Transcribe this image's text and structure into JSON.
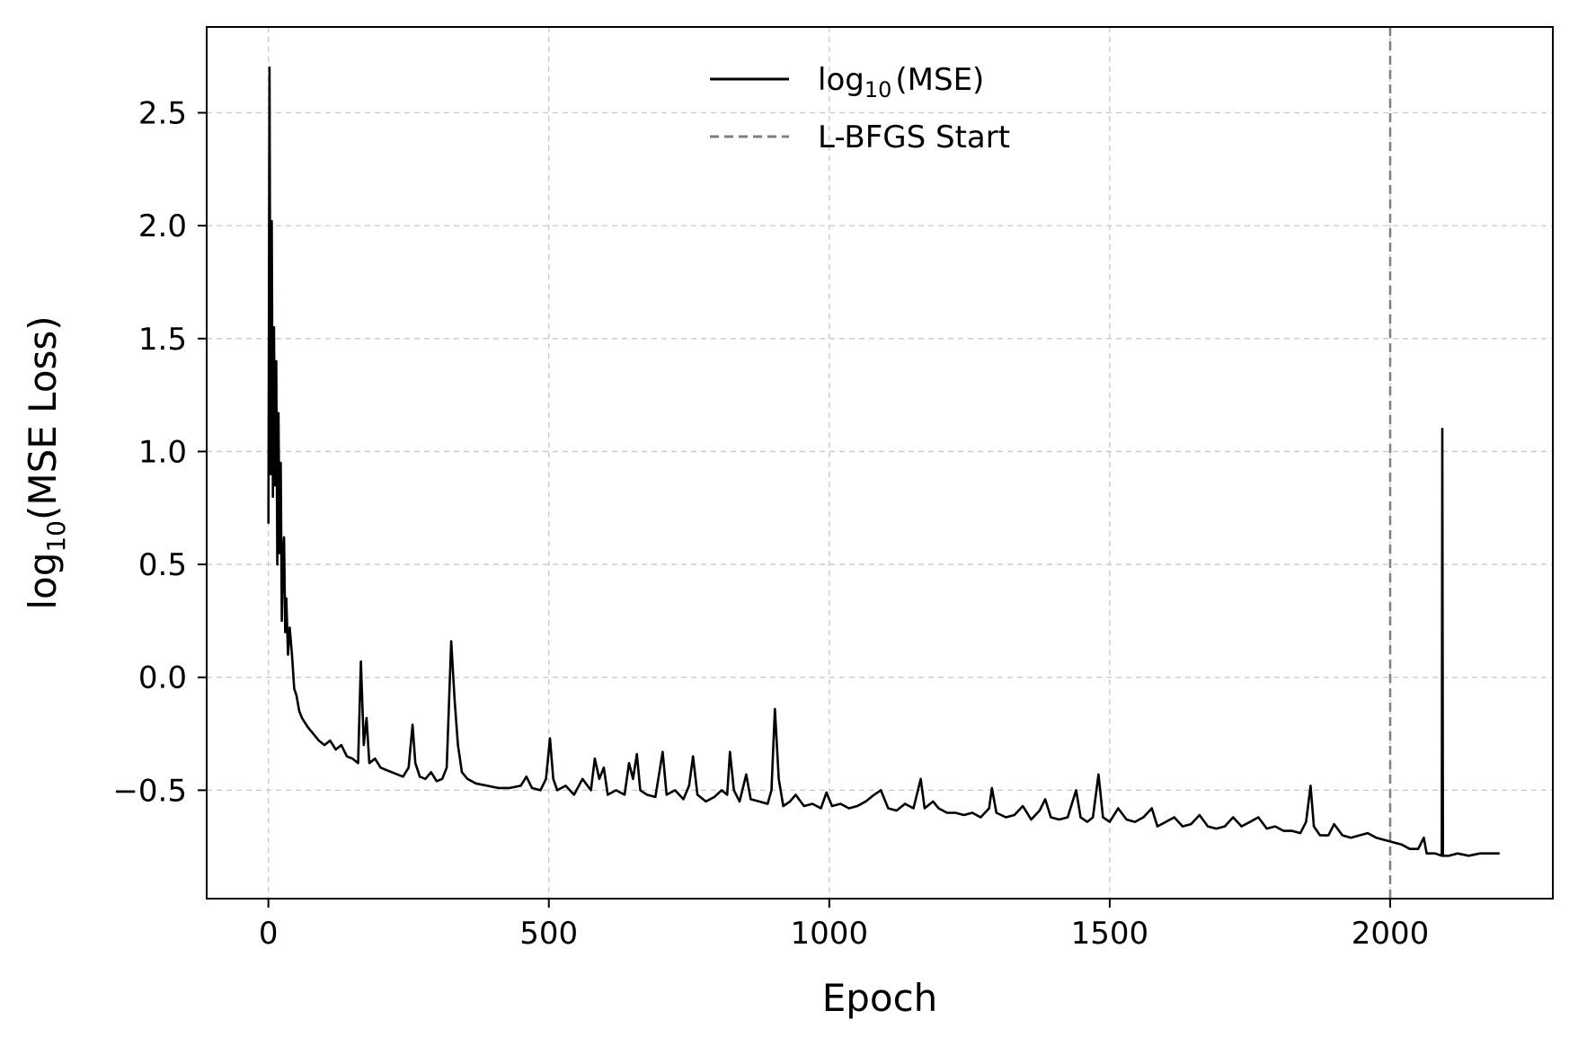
{
  "chart_data": {
    "type": "line",
    "xlabel": "Epoch",
    "ylabel": {
      "prefix": "log",
      "subscript": "10",
      "suffix": "(MSE Loss)"
    },
    "xlim": [
      -110,
      2290
    ],
    "ylim": [
      -0.98,
      2.88
    ],
    "x_ticks": [
      {
        "value": 0,
        "label": "0"
      },
      {
        "value": 500,
        "label": "500"
      },
      {
        "value": 1000,
        "label": "1000"
      },
      {
        "value": 1500,
        "label": "1500"
      },
      {
        "value": 2000,
        "label": "2000"
      }
    ],
    "y_ticks": [
      {
        "value": -0.5,
        "label": "−0.5"
      },
      {
        "value": 0.0,
        "label": "0.0"
      },
      {
        "value": 0.5,
        "label": "0.5"
      },
      {
        "value": 1.0,
        "label": "1.0"
      },
      {
        "value": 1.5,
        "label": "1.5"
      },
      {
        "value": 2.0,
        "label": "2.0"
      },
      {
        "value": 2.5,
        "label": "2.5"
      }
    ],
    "grid": true,
    "legend": {
      "placement": "upper-center",
      "entries": [
        {
          "label_prefix": "log",
          "label_subscript": "10",
          "label_suffix": "(MSE)",
          "style": "solid",
          "color": "#000000"
        },
        {
          "label_prefix": "L-BFGS Start",
          "label_subscript": "",
          "label_suffix": "",
          "style": "dashed",
          "color": "#808080"
        }
      ]
    },
    "series": [
      {
        "name": "log10(MSE)",
        "color": "#000000",
        "points": [
          [
            0,
            0.68
          ],
          [
            2,
            2.7
          ],
          [
            4,
            0.9
          ],
          [
            6,
            2.02
          ],
          [
            8,
            0.8
          ],
          [
            10,
            1.55
          ],
          [
            12,
            0.85
          ],
          [
            14,
            1.4
          ],
          [
            16,
            0.5
          ],
          [
            18,
            1.17
          ],
          [
            20,
            0.55
          ],
          [
            22,
            0.95
          ],
          [
            24,
            0.25
          ],
          [
            26,
            0.55
          ],
          [
            28,
            0.62
          ],
          [
            30,
            0.2
          ],
          [
            32,
            0.35
          ],
          [
            35,
            0.1
          ],
          [
            38,
            0.22
          ],
          [
            42,
            0.1
          ],
          [
            46,
            -0.05
          ],
          [
            50,
            -0.08
          ],
          [
            55,
            -0.15
          ],
          [
            60,
            -0.18
          ],
          [
            65,
            -0.2
          ],
          [
            70,
            -0.22
          ],
          [
            80,
            -0.25
          ],
          [
            90,
            -0.28
          ],
          [
            100,
            -0.3
          ],
          [
            110,
            -0.28
          ],
          [
            120,
            -0.32
          ],
          [
            130,
            -0.3
          ],
          [
            140,
            -0.35
          ],
          [
            150,
            -0.36
          ],
          [
            160,
            -0.38
          ],
          [
            165,
            0.07
          ],
          [
            170,
            -0.3
          ],
          [
            175,
            -0.18
          ],
          [
            180,
            -0.38
          ],
          [
            190,
            -0.36
          ],
          [
            200,
            -0.4
          ],
          [
            210,
            -0.41
          ],
          [
            220,
            -0.42
          ],
          [
            230,
            -0.43
          ],
          [
            240,
            -0.44
          ],
          [
            250,
            -0.4
          ],
          [
            257,
            -0.21
          ],
          [
            262,
            -0.38
          ],
          [
            270,
            -0.44
          ],
          [
            280,
            -0.45
          ],
          [
            290,
            -0.42
          ],
          [
            300,
            -0.46
          ],
          [
            310,
            -0.45
          ],
          [
            318,
            -0.4
          ],
          [
            326,
            0.16
          ],
          [
            332,
            -0.1
          ],
          [
            338,
            -0.3
          ],
          [
            345,
            -0.42
          ],
          [
            355,
            -0.45
          ],
          [
            370,
            -0.47
          ],
          [
            390,
            -0.48
          ],
          [
            410,
            -0.49
          ],
          [
            430,
            -0.49
          ],
          [
            450,
            -0.48
          ],
          [
            460,
            -0.44
          ],
          [
            470,
            -0.49
          ],
          [
            485,
            -0.5
          ],
          [
            495,
            -0.45
          ],
          [
            502,
            -0.27
          ],
          [
            508,
            -0.45
          ],
          [
            515,
            -0.5
          ],
          [
            530,
            -0.48
          ],
          [
            545,
            -0.52
          ],
          [
            560,
            -0.45
          ],
          [
            575,
            -0.5
          ],
          [
            582,
            -0.36
          ],
          [
            590,
            -0.45
          ],
          [
            598,
            -0.4
          ],
          [
            605,
            -0.52
          ],
          [
            620,
            -0.5
          ],
          [
            635,
            -0.52
          ],
          [
            643,
            -0.38
          ],
          [
            650,
            -0.45
          ],
          [
            657,
            -0.34
          ],
          [
            663,
            -0.5
          ],
          [
            675,
            -0.52
          ],
          [
            690,
            -0.53
          ],
          [
            703,
            -0.33
          ],
          [
            710,
            -0.52
          ],
          [
            725,
            -0.5
          ],
          [
            740,
            -0.54
          ],
          [
            750,
            -0.48
          ],
          [
            757,
            -0.35
          ],
          [
            765,
            -0.52
          ],
          [
            780,
            -0.55
          ],
          [
            795,
            -0.53
          ],
          [
            808,
            -0.5
          ],
          [
            818,
            -0.52
          ],
          [
            823,
            -0.33
          ],
          [
            830,
            -0.5
          ],
          [
            840,
            -0.55
          ],
          [
            852,
            -0.43
          ],
          [
            860,
            -0.54
          ],
          [
            875,
            -0.55
          ],
          [
            890,
            -0.56
          ],
          [
            897,
            -0.5
          ],
          [
            903,
            -0.14
          ],
          [
            910,
            -0.45
          ],
          [
            918,
            -0.57
          ],
          [
            930,
            -0.55
          ],
          [
            940,
            -0.52
          ],
          [
            955,
            -0.57
          ],
          [
            970,
            -0.56
          ],
          [
            985,
            -0.58
          ],
          [
            995,
            -0.51
          ],
          [
            1005,
            -0.57
          ],
          [
            1020,
            -0.56
          ],
          [
            1035,
            -0.58
          ],
          [
            1050,
            -0.57
          ],
          [
            1065,
            -0.55
          ],
          [
            1080,
            -0.52
          ],
          [
            1092,
            -0.5
          ],
          [
            1105,
            -0.58
          ],
          [
            1120,
            -0.59
          ],
          [
            1135,
            -0.56
          ],
          [
            1150,
            -0.58
          ],
          [
            1163,
            -0.45
          ],
          [
            1170,
            -0.58
          ],
          [
            1185,
            -0.55
          ],
          [
            1195,
            -0.58
          ],
          [
            1210,
            -0.6
          ],
          [
            1225,
            -0.6
          ],
          [
            1240,
            -0.61
          ],
          [
            1255,
            -0.6
          ],
          [
            1270,
            -0.62
          ],
          [
            1285,
            -0.58
          ],
          [
            1290,
            -0.49
          ],
          [
            1298,
            -0.6
          ],
          [
            1315,
            -0.62
          ],
          [
            1330,
            -0.61
          ],
          [
            1345,
            -0.57
          ],
          [
            1360,
            -0.63
          ],
          [
            1375,
            -0.59
          ],
          [
            1385,
            -0.54
          ],
          [
            1395,
            -0.62
          ],
          [
            1410,
            -0.63
          ],
          [
            1425,
            -0.62
          ],
          [
            1440,
            -0.5
          ],
          [
            1448,
            -0.62
          ],
          [
            1460,
            -0.64
          ],
          [
            1470,
            -0.62
          ],
          [
            1480,
            -0.43
          ],
          [
            1488,
            -0.62
          ],
          [
            1500,
            -0.64
          ],
          [
            1515,
            -0.58
          ],
          [
            1530,
            -0.63
          ],
          [
            1545,
            -0.64
          ],
          [
            1560,
            -0.62
          ],
          [
            1575,
            -0.58
          ],
          [
            1585,
            -0.66
          ],
          [
            1600,
            -0.64
          ],
          [
            1615,
            -0.62
          ],
          [
            1630,
            -0.66
          ],
          [
            1645,
            -0.65
          ],
          [
            1660,
            -0.61
          ],
          [
            1675,
            -0.66
          ],
          [
            1690,
            -0.67
          ],
          [
            1705,
            -0.66
          ],
          [
            1720,
            -0.62
          ],
          [
            1735,
            -0.66
          ],
          [
            1750,
            -0.64
          ],
          [
            1765,
            -0.62
          ],
          [
            1780,
            -0.67
          ],
          [
            1795,
            -0.66
          ],
          [
            1810,
            -0.68
          ],
          [
            1825,
            -0.68
          ],
          [
            1840,
            -0.69
          ],
          [
            1850,
            -0.64
          ],
          [
            1858,
            -0.48
          ],
          [
            1864,
            -0.66
          ],
          [
            1875,
            -0.7
          ],
          [
            1890,
            -0.7
          ],
          [
            1900,
            -0.65
          ],
          [
            1915,
            -0.7
          ],
          [
            1930,
            -0.71
          ],
          [
            1945,
            -0.7
          ],
          [
            1960,
            -0.69
          ],
          [
            1975,
            -0.71
          ],
          [
            1990,
            -0.72
          ],
          [
            2005,
            -0.73
          ],
          [
            2020,
            -0.74
          ],
          [
            2035,
            -0.76
          ],
          [
            2050,
            -0.76
          ],
          [
            2060,
            -0.71
          ],
          [
            2065,
            -0.78
          ],
          [
            2080,
            -0.78
          ],
          [
            2092,
            -0.79
          ],
          [
            2093,
            1.1
          ],
          [
            2094,
            -0.79
          ],
          [
            2105,
            -0.79
          ],
          [
            2120,
            -0.78
          ],
          [
            2140,
            -0.79
          ],
          [
            2160,
            -0.78
          ],
          [
            2180,
            -0.78
          ],
          [
            2195,
            -0.78
          ]
        ]
      }
    ],
    "vlines": [
      {
        "name": "L-BFGS Start",
        "x": 2000,
        "color": "#808080",
        "style": "dashed"
      }
    ]
  }
}
